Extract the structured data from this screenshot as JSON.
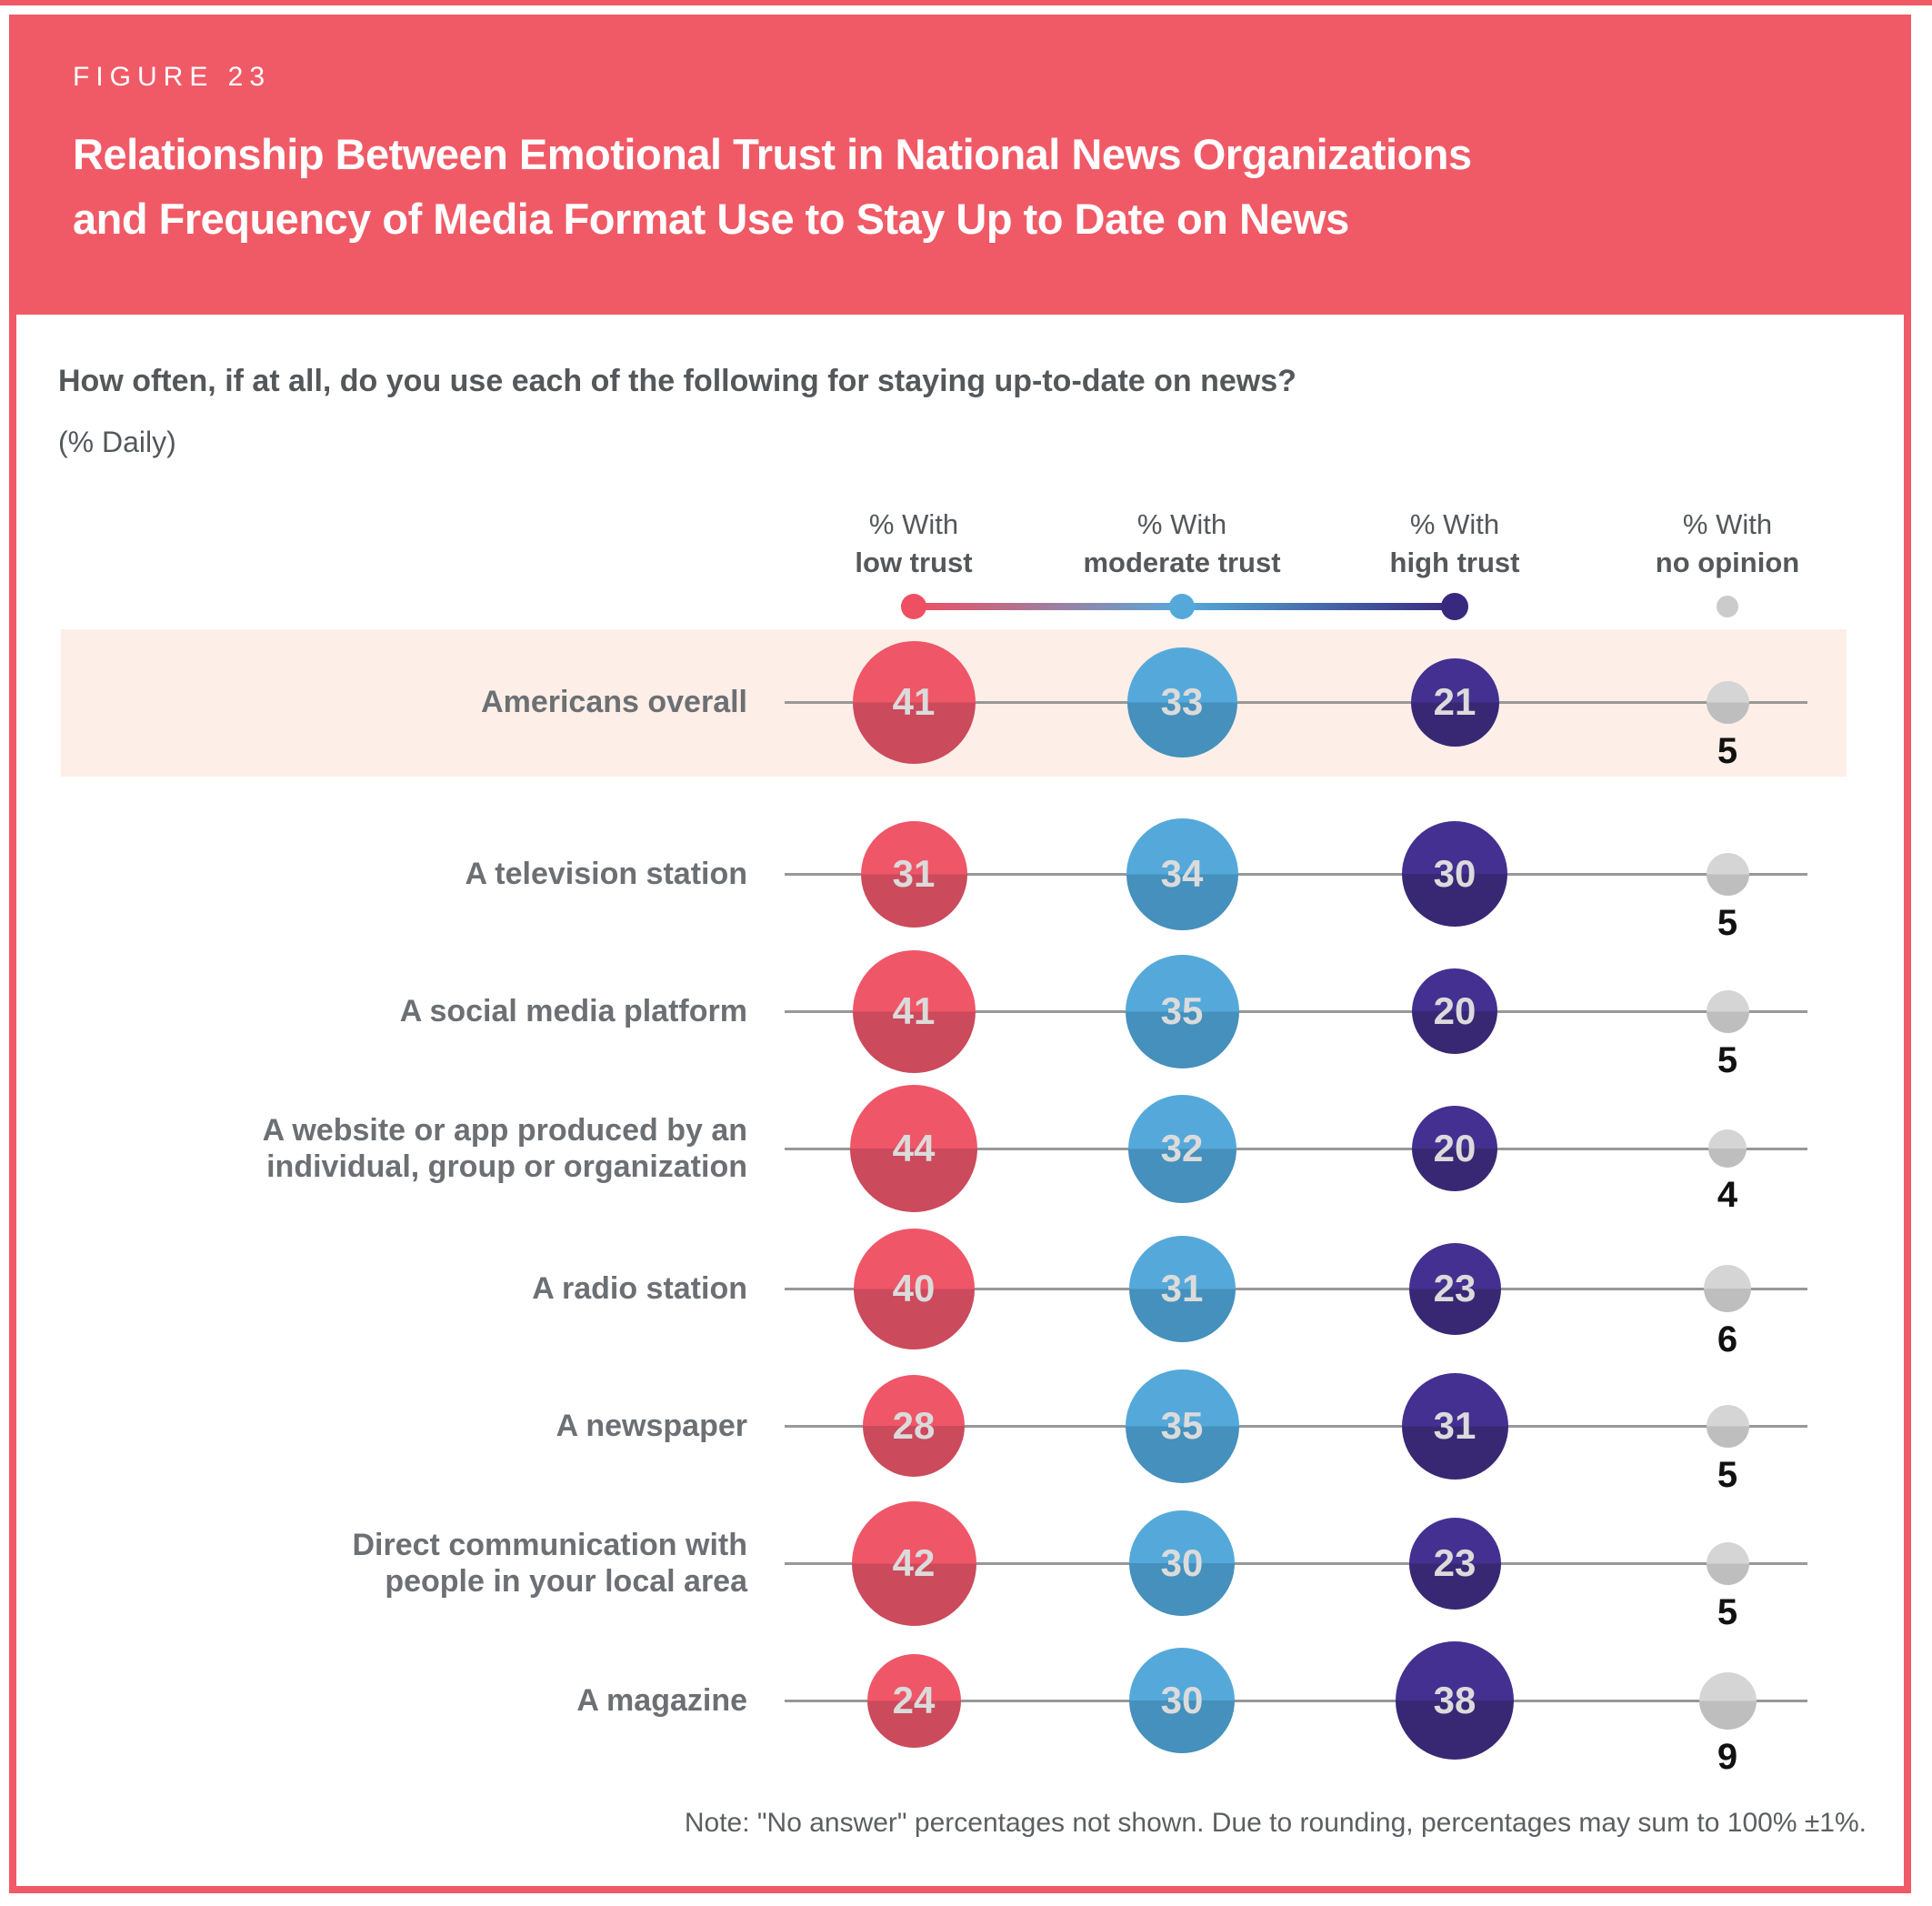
{
  "colors": {
    "banner_red": "#f05a66",
    "highlight_band": "#fdeee7",
    "row_line": "#989898",
    "low_trust_top": "#ef5668",
    "low_trust_bottom": "#cb4a5c",
    "moderate_trust_top": "#55a9da",
    "moderate_trust_bottom": "#4590bc",
    "high_trust_top": "#443091",
    "high_trust_bottom": "#382874",
    "no_opinion_top": "#d5d5d5",
    "no_opinion_bottom": "#bebebe",
    "legend_low": "#ee4f62",
    "legend_moderate": "#55a9da",
    "legend_high": "#38297e",
    "legend_no_opinion": "#cbcbcb",
    "bubble_value_text": "#dbdbdb",
    "no_opinion_value_text": "#111111"
  },
  "header": {
    "figure_label": "FIGURE 23",
    "title_line1": "Relationship Between Emotional Trust in National News Organizations",
    "title_line2": "and Frequency of Media Format Use to Stay Up to Date on News"
  },
  "intro": {
    "question": "How often, if at all, do you use each of the following for staying up-to-date on news?",
    "unit": "(% Daily)"
  },
  "columns": [
    {
      "prefix": "% With",
      "name": "low trust"
    },
    {
      "prefix": "% With",
      "name": "moderate trust"
    },
    {
      "prefix": "% With",
      "name": "high trust"
    },
    {
      "prefix": "% With",
      "name": "no opinion"
    }
  ],
  "chart_data": {
    "type": "bubble",
    "title": "Relationship Between Emotional Trust in National News Organizations and Frequency of Media Format Use to Stay Up to Date on News",
    "question": "How often, if at all, do you use each of the following for staying up-to-date on news?",
    "unit": "% Daily",
    "bubble_scale": "diameter proportional to sqrt(value)",
    "highlighted_category": "Americans overall",
    "categories": [
      "Americans overall",
      "A television station",
      "A social media platform",
      "A website or app produced by an individual, group or organization",
      "A radio station",
      "A newspaper",
      "Direct communication with people in your local area",
      "A magazine"
    ],
    "category_lines": [
      [
        "Americans overall"
      ],
      [
        "A television station"
      ],
      [
        "A social media platform"
      ],
      [
        "A website or app produced by an",
        "individual, group or organization"
      ],
      [
        "A radio station"
      ],
      [
        "A newspaper"
      ],
      [
        "Direct communication with",
        "people in your local area"
      ],
      [
        "A magazine"
      ]
    ],
    "series": [
      {
        "name": "% With low trust",
        "values": [
          41,
          31,
          41,
          44,
          40,
          28,
          42,
          24
        ]
      },
      {
        "name": "% With moderate trust",
        "values": [
          33,
          34,
          35,
          32,
          31,
          35,
          30,
          30
        ]
      },
      {
        "name": "% With high trust",
        "values": [
          21,
          30,
          20,
          20,
          23,
          31,
          23,
          38
        ]
      },
      {
        "name": "% With no opinion",
        "values": [
          5,
          5,
          5,
          4,
          6,
          5,
          5,
          9
        ]
      }
    ]
  },
  "note": "Note: \"No answer\" percentages not shown. Due to rounding, percentages may sum to 100% ±1%."
}
